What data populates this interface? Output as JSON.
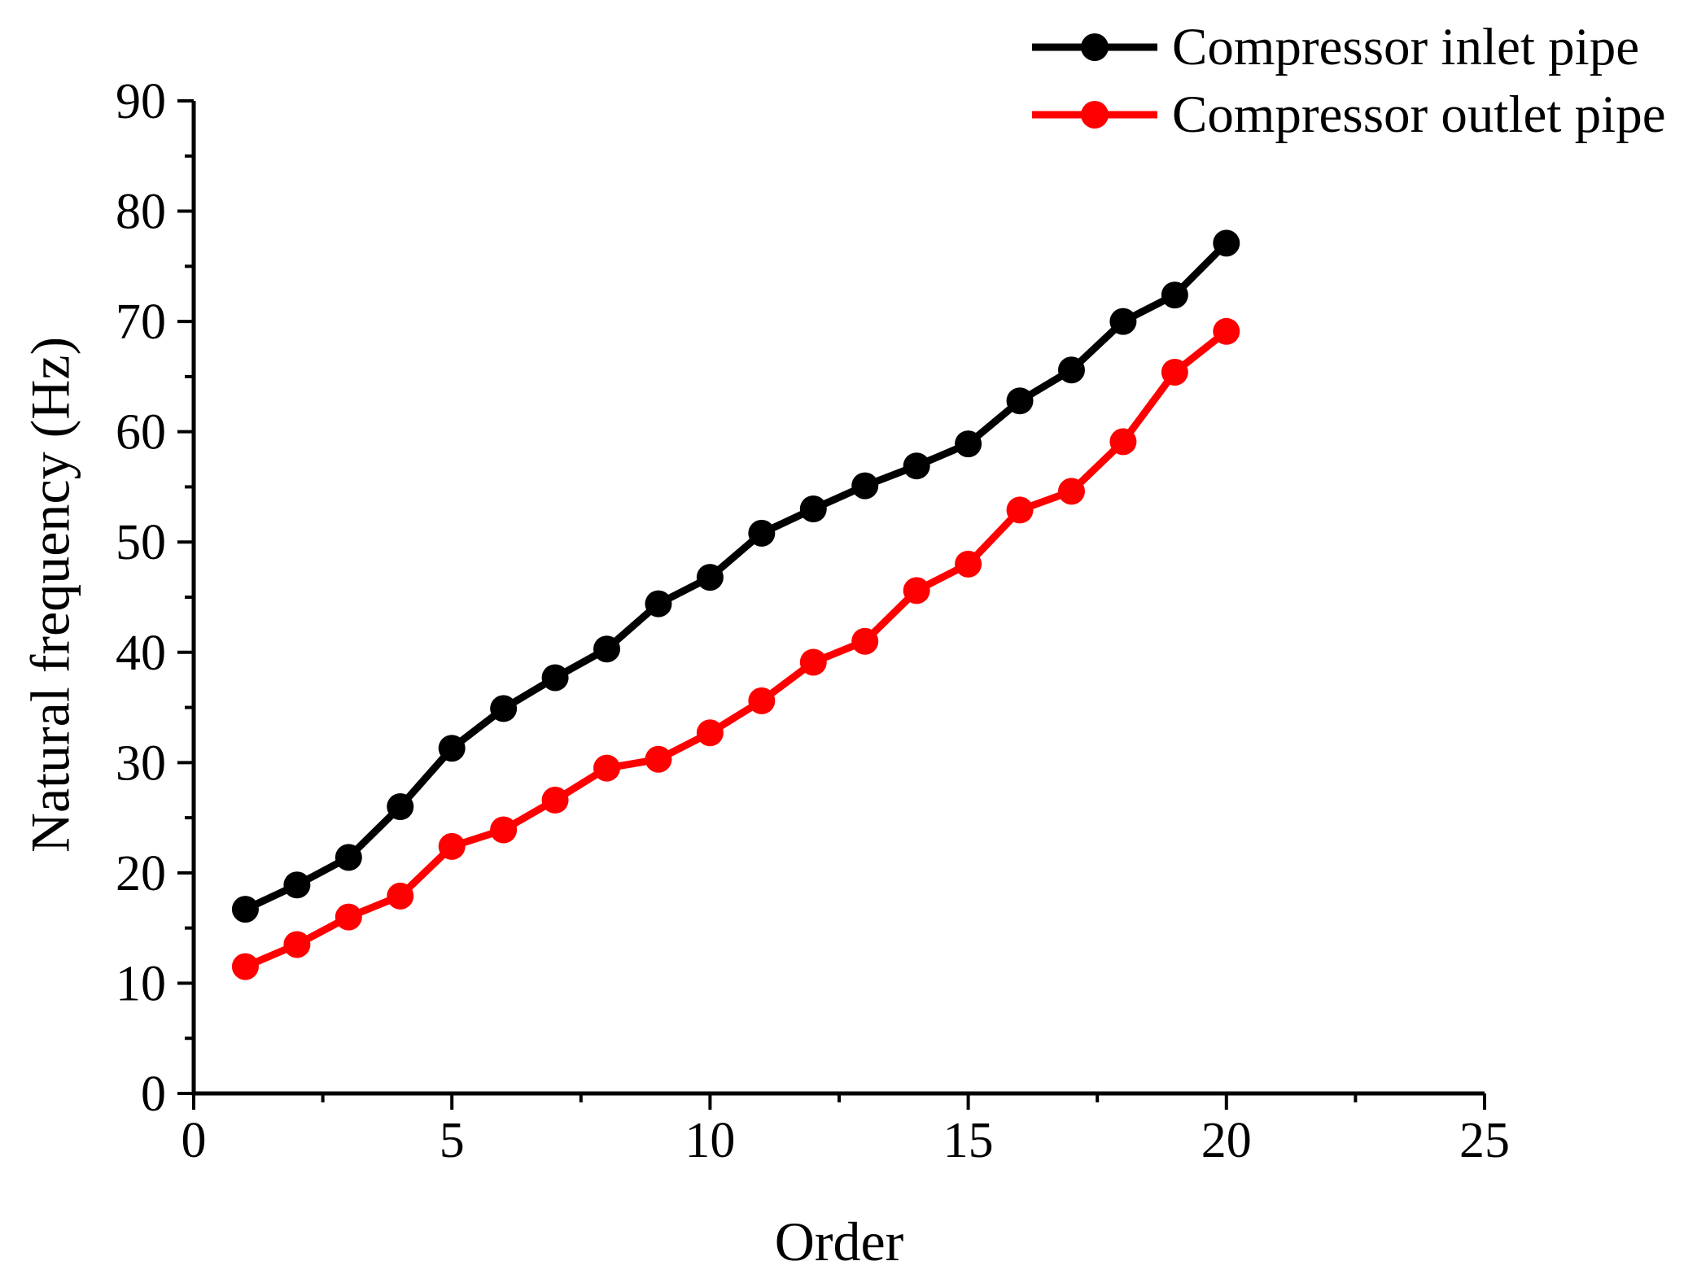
{
  "chart_data": {
    "type": "line",
    "title": "",
    "xlabel": "Order",
    "ylabel": "Natural frequency (Hz)",
    "xlim": [
      0,
      25
    ],
    "ylim": [
      0,
      90
    ],
    "x_major_ticks": [
      0,
      5,
      10,
      15,
      20,
      25
    ],
    "x_minor_ticks": [
      2.5,
      7.5,
      12.5,
      17.5,
      22.5
    ],
    "y_major_ticks": [
      0,
      10,
      20,
      30,
      40,
      50,
      60,
      70,
      80,
      90
    ],
    "y_minor_ticks": [
      5,
      15,
      25,
      35,
      45,
      55,
      65,
      75,
      85
    ],
    "grid": false,
    "legend_position": "top-right",
    "x": [
      1,
      2,
      3,
      4,
      5,
      6,
      7,
      8,
      9,
      10,
      11,
      12,
      13,
      14,
      15,
      16,
      17,
      18,
      19,
      20
    ],
    "series": [
      {
        "name": "Compressor inlet pipe",
        "color": "#000000",
        "values": [
          16.7,
          18.9,
          21.4,
          26.0,
          31.3,
          34.9,
          37.7,
          40.3,
          44.4,
          46.8,
          50.8,
          53.0,
          55.1,
          56.9,
          58.9,
          62.8,
          65.6,
          70.0,
          72.4,
          77.1
        ]
      },
      {
        "name": "Compressor outlet pipe",
        "color": "#ff0000",
        "values": [
          11.5,
          13.5,
          16.0,
          17.9,
          22.4,
          23.9,
          26.6,
          29.5,
          30.3,
          32.7,
          35.6,
          39.1,
          41.0,
          45.6,
          48.0,
          52.9,
          54.6,
          59.1,
          65.4,
          69.1
        ]
      }
    ],
    "marker": "circle",
    "axis_color": "#000000",
    "background_color": "#ffffff"
  }
}
